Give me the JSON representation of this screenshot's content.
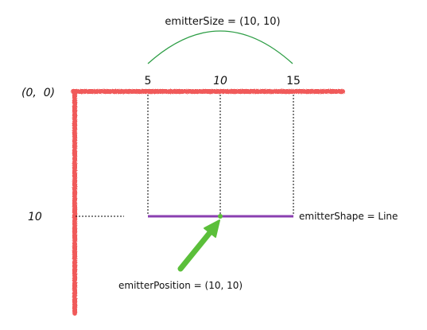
{
  "origin_label": "(0,  0)",
  "x_ticks": [
    "5",
    "10",
    "15"
  ],
  "y_tick": "10",
  "size_label": "emitterSize = (10, 10)",
  "shape_label": "emitterShape = Line",
  "position_label": "emitterPosition = (10, 10)",
  "colors": {
    "axis": "#f05a5a",
    "line": "#8a3fb0",
    "arc": "#2e9e46",
    "arrow": "#5bbf3a",
    "guide": "#000000"
  }
}
